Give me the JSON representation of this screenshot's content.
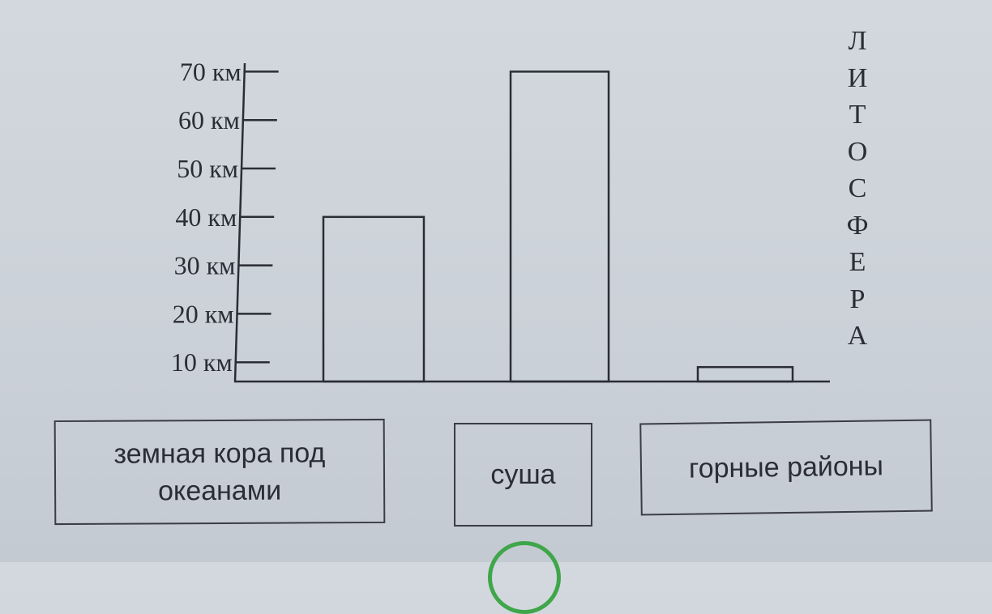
{
  "chart_data": {
    "type": "bar",
    "title": "",
    "side_label": "ЛИТОСФЕРА",
    "y_ticks": [
      "10 км",
      "20 км",
      "30 км",
      "40 км",
      "50 км",
      "60 км",
      "70 км"
    ],
    "y_tick_values": [
      10,
      20,
      30,
      40,
      50,
      60,
      70
    ],
    "ylabel": "",
    "xlabel": "",
    "values": [
      40,
      70,
      9
    ],
    "grid": false,
    "bar_fill": "none",
    "stroke_color": "#2a2d36"
  },
  "labels": [
    "земная кора под океанами",
    "суша",
    "горные районы"
  ],
  "colors": {
    "paper": "#cbd1d8",
    "circle": "#3fa64a"
  }
}
